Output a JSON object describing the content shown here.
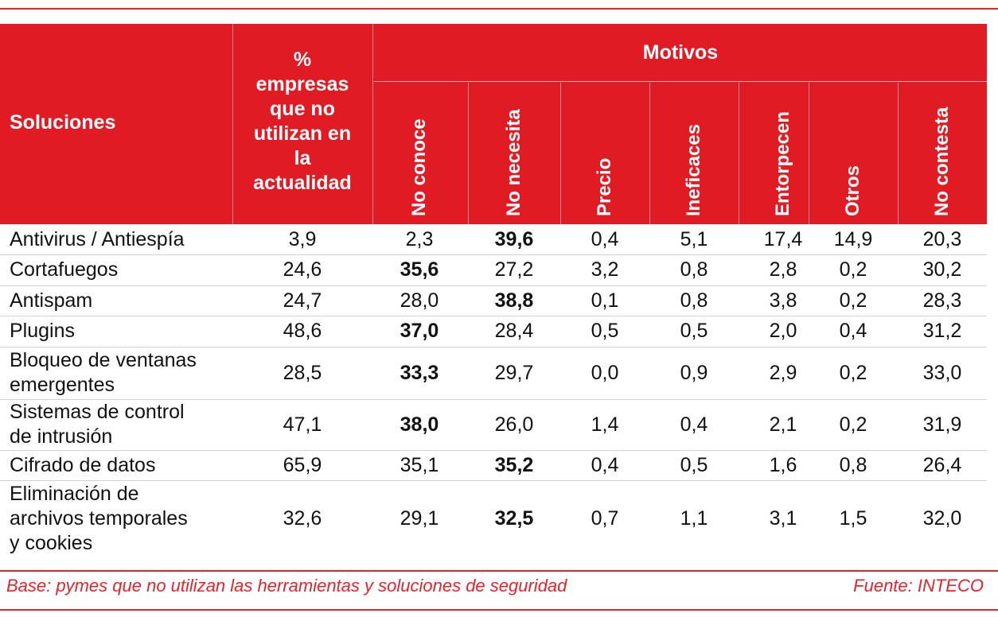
{
  "header": {
    "soluciones": "Soluciones",
    "pct_lines": [
      "%",
      "empresas",
      "que no",
      "utilizan en",
      "la",
      "actualidad"
    ],
    "motivos": "Motivos",
    "reasons": [
      "No conoce",
      "No necesita",
      "Precio",
      "Ineficaces",
      "Entorpecen",
      "Otros",
      "No contesta"
    ]
  },
  "rows": [
    {
      "label": [
        "Antivirus / Antiespía"
      ],
      "values": [
        "3,9",
        "2,3",
        "39,6",
        "0,4",
        "5,1",
        "17,4",
        "14,9",
        "20,3"
      ],
      "bold": 2
    },
    {
      "label": [
        "Cortafuegos"
      ],
      "values": [
        "24,6",
        "35,6",
        "27,2",
        "3,2",
        "0,8",
        "2,8",
        "0,2",
        "30,2"
      ],
      "bold": 1
    },
    {
      "label": [
        "Antispam"
      ],
      "values": [
        "24,7",
        "28,0",
        "38,8",
        "0,1",
        "0,8",
        "3,8",
        "0,2",
        "28,3"
      ],
      "bold": 2
    },
    {
      "label": [
        "Plugins"
      ],
      "values": [
        "48,6",
        "37,0",
        "28,4",
        "0,5",
        "0,5",
        "2,0",
        "0,4",
        "31,2"
      ],
      "bold": 1
    },
    {
      "label": [
        "Bloqueo de ventanas",
        "emergentes"
      ],
      "values": [
        "28,5",
        "33,3",
        "29,7",
        "0,0",
        "0,9",
        "2,9",
        "0,2",
        "33,0"
      ],
      "bold": 1
    },
    {
      "label": [
        "Sistemas de control",
        "de intrusión"
      ],
      "values": [
        "47,1",
        "38,0",
        "26,0",
        "1,4",
        "0,4",
        "2,1",
        "0,2",
        "31,9"
      ],
      "bold": 1
    },
    {
      "label": [
        "Cifrado de datos"
      ],
      "values": [
        "65,9",
        "35,1",
        "35,2",
        "0,4",
        "0,5",
        "1,6",
        "0,8",
        "26,4"
      ],
      "bold": 2
    },
    {
      "label": [
        "Eliminación de",
        "archivos temporales",
        "y cookies"
      ],
      "values": [
        "32,6",
        "29,1",
        "32,5",
        "0,7",
        "1,1",
        "3,1",
        "1,5",
        "32,0"
      ],
      "bold": 2
    }
  ],
  "footer": {
    "base": "Base: pymes que no utilizan las herramientas y soluciones de seguridad",
    "source": "Fuente: INTECO"
  },
  "colors": {
    "accent": "#e01b24"
  }
}
